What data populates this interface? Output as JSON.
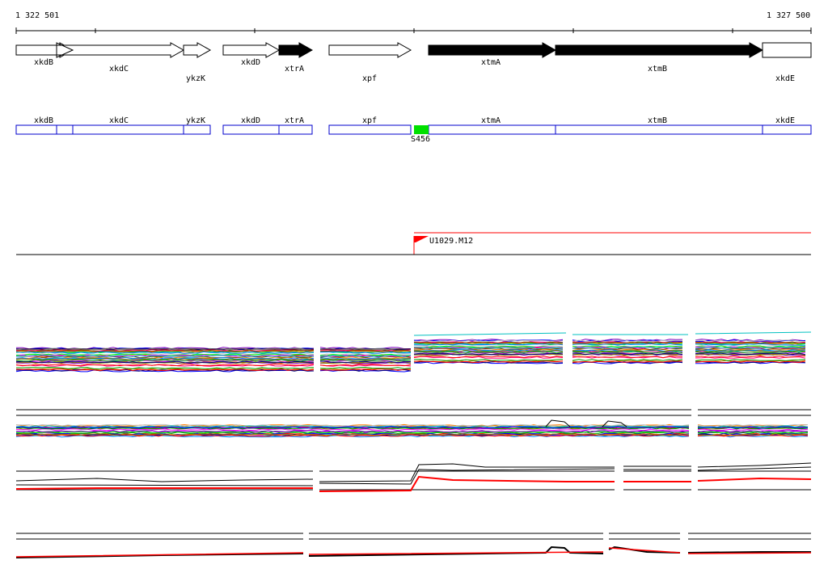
{
  "coords": {
    "start": "1 322 501",
    "end": "1 327 500"
  },
  "genes": [
    {
      "name": "xkdB",
      "strand": "fwd",
      "filled": false
    },
    {
      "name": "xkdC",
      "strand": "fwd",
      "filled": false
    },
    {
      "name": "ykzK",
      "strand": "fwd",
      "filled": false
    },
    {
      "name": "xkdD",
      "strand": "fwd",
      "filled": false
    },
    {
      "name": "xtrA",
      "strand": "fwd",
      "filled": true
    },
    {
      "name": "xpf",
      "strand": "fwd",
      "filled": false
    },
    {
      "name": "xtmA",
      "strand": "fwd",
      "filled": true
    },
    {
      "name": "xtmB",
      "strand": "fwd",
      "filled": true
    },
    {
      "name": "xkdE",
      "strand": "fwd",
      "filled": false
    }
  ],
  "segments": [
    {
      "name": "xkdB"
    },
    {
      "name": "xkdC"
    },
    {
      "name": "ykzK"
    },
    {
      "name": "xkdD"
    },
    {
      "name": "xtrA"
    },
    {
      "name": "xpf"
    },
    {
      "name": "xtmA"
    },
    {
      "name": "xtmB"
    },
    {
      "name": "xkdE"
    }
  ],
  "marker": {
    "label": "S456",
    "color": "#00e000"
  },
  "transcript": {
    "label": "U1029.M12",
    "color": "#ff0000"
  },
  "colors": {
    "segment_border": "#0000cc",
    "track_line": "#000000",
    "highlight": "#ff0000"
  }
}
